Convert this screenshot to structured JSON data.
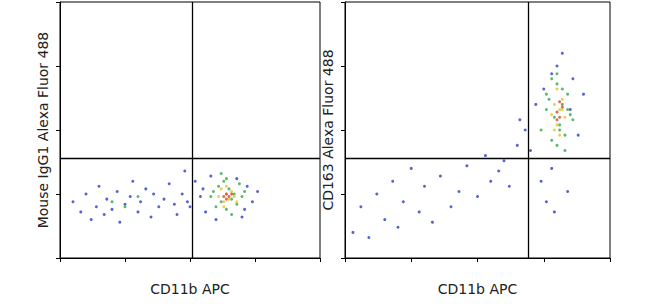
{
  "chart_data": [
    {
      "type": "scatter",
      "x_label": "CD11b APC",
      "y_label": "Mouse IgG1 Alexa Fluor 488",
      "xlim": [
        0,
        100
      ],
      "ylim": [
        0,
        100
      ],
      "xticks": [
        0,
        25,
        50,
        75,
        100
      ],
      "yticks": [
        0,
        25,
        50,
        75,
        100
      ],
      "tick_labels": false,
      "grid": false,
      "quadrant": {
        "x": 51,
        "y": 39
      },
      "series": [
        {
          "color": "#2a3fc4",
          "x": [
            5,
            8,
            10,
            12,
            14,
            15,
            17,
            18,
            20,
            22,
            23,
            25,
            27,
            28,
            30,
            31,
            33,
            35,
            36,
            38,
            40,
            42,
            44,
            45,
            47,
            49,
            52,
            54,
            56,
            58,
            60,
            70,
            72,
            74,
            76,
            50,
            48,
            55,
            68,
            71
          ],
          "y": [
            22,
            18,
            25,
            15,
            20,
            28,
            17,
            23,
            19,
            26,
            14,
            21,
            24,
            30,
            18,
            22,
            27,
            16,
            25,
            20,
            23,
            29,
            21,
            17,
            25,
            22,
            30,
            24,
            18,
            32,
            15,
            16,
            28,
            22,
            26,
            20,
            34,
            27,
            31,
            19
          ]
        },
        {
          "color": "#2fa84a",
          "x": [
            58,
            60,
            61,
            62,
            63,
            64,
            65,
            66,
            67,
            68,
            69,
            70,
            59,
            71,
            20,
            25,
            30,
            62,
            66,
            64
          ],
          "y": [
            24,
            20,
            28,
            22,
            30,
            19,
            27,
            23,
            25,
            21,
            29,
            24,
            26,
            26,
            22,
            20,
            24,
            33,
            17,
            31
          ]
        },
        {
          "color": "#e3c520",
          "x": [
            61,
            62,
            63,
            64,
            65,
            66,
            67,
            68,
            64,
            63
          ],
          "y": [
            24,
            27,
            22,
            25,
            23,
            26,
            24,
            22,
            28,
            20
          ]
        },
        {
          "color": "#e0402a",
          "x": [
            63,
            64,
            65,
            66,
            64
          ],
          "y": [
            24,
            25,
            24,
            25,
            23
          ]
        }
      ]
    },
    {
      "type": "scatter",
      "x_label": "CD11b APC",
      "y_label": "CD163 Alexa Fluor 488",
      "xlim": [
        0,
        100
      ],
      "ylim": [
        0,
        100
      ],
      "xticks": [
        0,
        25,
        50,
        75,
        100
      ],
      "yticks": [
        0,
        25,
        50,
        75,
        100
      ],
      "tick_labels": false,
      "grid": false,
      "quadrant": {
        "x": 69,
        "y": 39
      },
      "series": [
        {
          "color": "#2a3fc4",
          "x": [
            3,
            6,
            9,
            12,
            15,
            18,
            20,
            22,
            25,
            28,
            30,
            33,
            36,
            40,
            43,
            46,
            50,
            53,
            55,
            58,
            60,
            62,
            65,
            68,
            72,
            75,
            78,
            80,
            85,
            88,
            90,
            70,
            74,
            82,
            86,
            76,
            79,
            84,
            78,
            66
          ],
          "y": [
            10,
            20,
            8,
            25,
            15,
            30,
            12,
            22,
            35,
            18,
            28,
            14,
            32,
            20,
            26,
            36,
            24,
            40,
            30,
            34,
            38,
            28,
            44,
            50,
            60,
            66,
            72,
            75,
            58,
            48,
            64,
            42,
            30,
            80,
            70,
            22,
            18,
            26,
            35,
            54
          ]
        },
        {
          "color": "#2fa84a",
          "x": [
            74,
            76,
            77,
            78,
            79,
            80,
            81,
            82,
            83,
            84,
            85,
            86,
            78,
            80,
            82,
            84,
            76,
            80,
            81,
            83
          ],
          "y": [
            50,
            58,
            62,
            46,
            55,
            68,
            52,
            60,
            48,
            64,
            56,
            54,
            70,
            44,
            66,
            58,
            64,
            72,
            50,
            42
          ]
        },
        {
          "color": "#e3c520",
          "x": [
            78,
            79,
            80,
            81,
            82,
            83,
            80,
            81,
            79,
            82
          ],
          "y": [
            56,
            60,
            52,
            58,
            62,
            55,
            66,
            48,
            50,
            58
          ]
        },
        {
          "color": "#e0402a",
          "x": [
            80,
            81,
            82,
            81,
            80
          ],
          "y": [
            57,
            55,
            59,
            61,
            54
          ]
        }
      ]
    }
  ]
}
